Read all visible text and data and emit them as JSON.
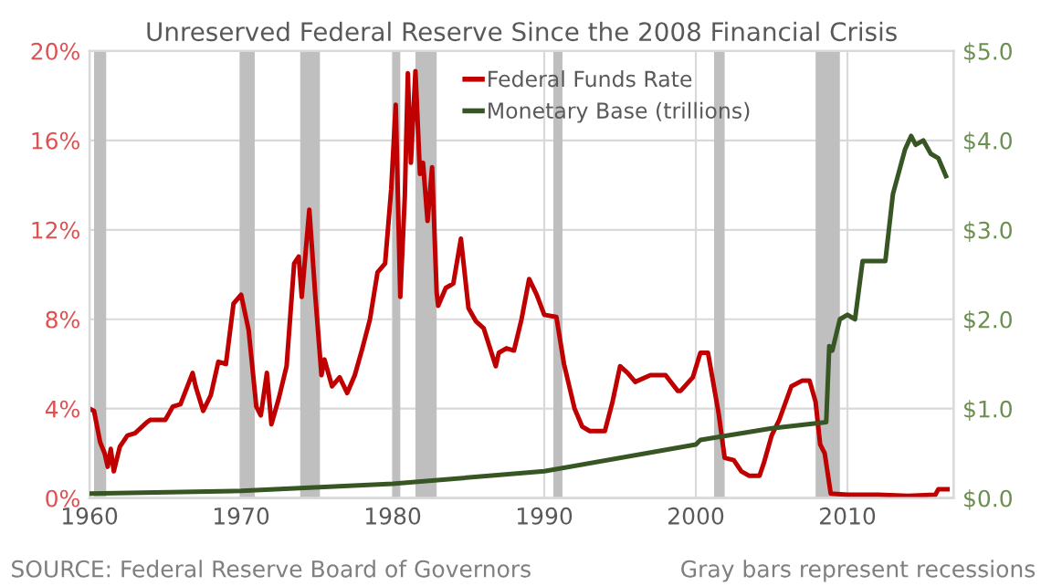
{
  "chart_data": {
    "type": "line",
    "title": "Unreserved Federal Reserve Since the 2008 Financial Crisis",
    "xlim": [
      1960,
      2017
    ],
    "xticks": [
      1960,
      1970,
      1980,
      1990,
      2000,
      2010
    ],
    "ylim": [
      0,
      20
    ],
    "yticks": [
      {
        "value": 0,
        "label": "0%"
      },
      {
        "value": 4,
        "label": "4%"
      },
      {
        "value": 8,
        "label": "8%"
      },
      {
        "value": 12,
        "label": "12%"
      },
      {
        "value": 16,
        "label": "16%"
      },
      {
        "value": 20,
        "label": "20%"
      }
    ],
    "y2lim": [
      0,
      5
    ],
    "y2ticks": [
      {
        "value": 0,
        "label": "$0.0"
      },
      {
        "value": 1,
        "label": "$1.0"
      },
      {
        "value": 2,
        "label": "$2.0"
      },
      {
        "value": 3,
        "label": "$3.0"
      },
      {
        "value": 4,
        "label": "$4.0"
      },
      {
        "value": 5,
        "label": "$5.0"
      }
    ],
    "grid": true,
    "legend": "top",
    "marker": "none",
    "line_style": "solid",
    "bands": [
      {
        "axis": "x",
        "from": 1960.3,
        "to": 1961.1,
        "color": "#bfbfbf"
      },
      {
        "axis": "x",
        "from": 1969.9,
        "to": 1970.9,
        "color": "#bfbfbf"
      },
      {
        "axis": "x",
        "from": 1973.9,
        "to": 1975.2,
        "color": "#bfbfbf"
      },
      {
        "axis": "x",
        "from": 1980.0,
        "to": 1980.5,
        "color": "#bfbfbf"
      },
      {
        "axis": "x",
        "from": 1981.5,
        "to": 1982.9,
        "color": "#bfbfbf"
      },
      {
        "axis": "x",
        "from": 1990.6,
        "to": 1991.2,
        "color": "#bfbfbf"
      },
      {
        "axis": "x",
        "from": 2001.2,
        "to": 2001.9,
        "color": "#bfbfbf"
      },
      {
        "axis": "x",
        "from": 2007.9,
        "to": 2009.5,
        "color": "#bfbfbf"
      }
    ],
    "annotations": [
      "SOURCE: Federal Reserve Board of Governors",
      "Gray bars represent recessions"
    ],
    "series": [
      {
        "name": "Federal Funds Rate",
        "color": "#c00000",
        "x": [
          1960.0,
          1960.3,
          1960.7,
          1961.0,
          1961.2,
          1961.4,
          1961.6,
          1962,
          1962.5,
          1963,
          1963.8,
          1964,
          1965,
          1965.5,
          1966,
          1966.8,
          1967,
          1967.5,
          1968,
          1968.5,
          1969,
          1969.5,
          1970,
          1970.5,
          1971,
          1971.3,
          1971.7,
          1972,
          1972.5,
          1973,
          1973.5,
          1973.8,
          1974,
          1974.5,
          1974.9,
          1975.3,
          1975.5,
          1976,
          1976.5,
          1977,
          1977.5,
          1978,
          1978.5,
          1979,
          1979.5,
          1979.9,
          1980.2,
          1980.5,
          1980.8,
          1981,
          1981.2,
          1981.5,
          1981.8,
          1982,
          1982.3,
          1982.6,
          1982.9,
          1983,
          1983.5,
          1984,
          1984.5,
          1985,
          1985.5,
          1986,
          1986.8,
          1987,
          1987.5,
          1988,
          1988.5,
          1989,
          1989.5,
          1990,
          1990.8,
          1991.3,
          1992,
          1992.5,
          1993,
          1994,
          1994.5,
          1995,
          1995.5,
          1996,
          1997,
          1998,
          1998.8,
          1999,
          1999.8,
          2000.3,
          2000.8,
          2001.5,
          2001.9,
          2002.5,
          2003,
          2003.5,
          2004.2,
          2004.5,
          2005,
          2005.5,
          2006.3,
          2007.0,
          2007.5,
          2007.9,
          2008.2,
          2008.5,
          2008.9,
          2010,
          2012,
          2014,
          2015.8,
          2016,
          2016.6
        ],
        "values": [
          4.0,
          3.9,
          2.5,
          2.0,
          1.4,
          2.2,
          1.2,
          2.3,
          2.8,
          2.9,
          3.4,
          3.5,
          3.5,
          4.1,
          4.2,
          5.6,
          5.0,
          3.9,
          4.6,
          6.1,
          6.0,
          8.7,
          9.1,
          7.5,
          4.1,
          3.7,
          5.6,
          3.3,
          4.5,
          5.9,
          10.5,
          10.8,
          9.0,
          12.9,
          9.0,
          5.5,
          6.2,
          5.0,
          5.4,
          4.7,
          5.5,
          6.7,
          8.0,
          10.1,
          10.5,
          13.8,
          17.6,
          9.0,
          13.5,
          19.0,
          15.0,
          19.1,
          14.5,
          15.0,
          12.4,
          14.8,
          9.2,
          8.6,
          9.4,
          9.6,
          11.6,
          8.5,
          7.9,
          7.6,
          5.9,
          6.5,
          6.7,
          6.6,
          8.0,
          9.8,
          9.1,
          8.2,
          8.1,
          6.0,
          4.0,
          3.2,
          3.0,
          3.0,
          4.3,
          5.9,
          5.6,
          5.2,
          5.5,
          5.5,
          4.8,
          4.8,
          5.4,
          6.5,
          6.5,
          3.8,
          1.8,
          1.7,
          1.2,
          1.0,
          1.0,
          1.6,
          2.8,
          3.5,
          5.0,
          5.25,
          5.25,
          4.3,
          2.4,
          2.0,
          0.2,
          0.15,
          0.15,
          0.1,
          0.15,
          0.4,
          0.4
        ]
      },
      {
        "name": "Monetary Base (trillions)",
        "color": "#375623",
        "axis": "y2",
        "x": [
          1960,
          1970,
          1980,
          1990,
          2000,
          2000.3,
          2005,
          2008.6,
          2008.8,
          2009,
          2009.5,
          2010,
          2010.5,
          2011,
          2011.5,
          2012,
          2012.5,
          2013,
          2013.8,
          2014.2,
          2014.5,
          2015,
          2015.5,
          2016,
          2016.5
        ],
        "values": [
          0.05,
          0.08,
          0.16,
          0.3,
          0.6,
          0.65,
          0.78,
          0.85,
          1.7,
          1.65,
          2.0,
          2.05,
          2.0,
          2.65,
          2.65,
          2.65,
          2.65,
          3.4,
          3.9,
          4.05,
          3.95,
          4.0,
          3.85,
          3.8,
          3.6
        ]
      }
    ]
  }
}
